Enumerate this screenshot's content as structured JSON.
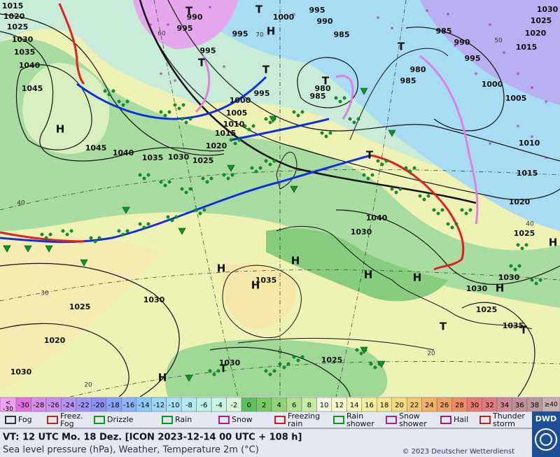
{
  "map": {
    "pressure_labels": [
      1015,
      1020,
      1025,
      1030,
      1035,
      1040,
      1045,
      1045,
      1040,
      1035,
      1030,
      1025,
      1020,
      1015,
      1010,
      1005,
      1000,
      995,
      995,
      995,
      995,
      990,
      1000,
      995,
      990,
      985,
      980,
      985,
      980,
      985,
      985,
      990,
      995,
      1000,
      1005,
      1010,
      1015,
      1015,
      1020,
      1025,
      1030,
      1020,
      1025,
      1030,
      1030,
      1025,
      1035,
      1030,
      1040,
      1035,
      1030,
      1025,
      1020,
      1030,
      1030,
      1025
    ],
    "highs": [
      "H",
      "H",
      "H",
      "H",
      "H",
      "H",
      "H",
      "H",
      "H",
      "H"
    ],
    "lows": [
      "T",
      "T",
      "T",
      "T",
      "T",
      "T",
      "T",
      "T",
      "T",
      "T"
    ],
    "graticule_labels": [
      60,
      70,
      50,
      40,
      40,
      30,
      20,
      20,
      0
    ]
  },
  "legend": {
    "temperature": {
      "below_label": [
        "<",
        "-30"
      ],
      "below_color": "#f0a0f0",
      "values": [
        -30,
        -28,
        -26,
        -24,
        -22,
        -20,
        -18,
        -16,
        -14,
        -12,
        -10,
        -8,
        -6,
        -4,
        -2,
        0,
        2,
        4,
        6,
        8,
        10,
        12,
        14,
        16,
        18,
        20,
        22,
        24,
        26,
        28,
        30,
        32,
        34,
        36,
        38
      ],
      "colors": [
        "#e070e0",
        "#d88ce4",
        "#c890ec",
        "#b494f0",
        "#a094f2",
        "#8c90f2",
        "#8ca4f6",
        "#8cb4f8",
        "#8cc8fa",
        "#9cd6fa",
        "#a8e2f6",
        "#b4ecf2",
        "#bcf2ea",
        "#c8f6e0",
        "#d6f8d6",
        "#5ec05a",
        "#78c864",
        "#94d478",
        "#b0e090",
        "#c8eca8",
        "#f4fae0",
        "#fafcd0",
        "#f8f8b8",
        "#f4f09c",
        "#f4e890",
        "#f4dc80",
        "#f0c870",
        "#f0b464",
        "#f0a060",
        "#f08c64",
        "#e87870",
        "#e07c80",
        "#d08890",
        "#c09098",
        "#b89898"
      ],
      "above_label": [
        "≥40"
      ],
      "above_color": "#c8b0b0"
    },
    "weather": [
      {
        "lines": [
          "Fog"
        ]
      },
      {
        "lines": [
          "Freez.",
          "Fog"
        ]
      },
      {
        "lines": [
          "Drizzle"
        ]
      },
      {
        "lines": [
          "Rain"
        ]
      },
      {
        "lines": [
          "Snow"
        ]
      },
      {
        "lines": [
          "Freezing",
          "rain"
        ]
      },
      {
        "lines": [
          "Rain",
          "shower"
        ]
      },
      {
        "lines": [
          "Snow",
          "shower"
        ]
      },
      {
        "lines": [
          "Hail"
        ]
      },
      {
        "lines": [
          "Thunder",
          "storm"
        ]
      }
    ]
  },
  "footer": {
    "valid_time": "VT: 12 UTC Mo.  18 Dez. [ICON 2023-12-14  00 UTC + 108 h]",
    "subtitle": "Sea level pressure (hPa), Weather, Temperature 2m (°C)",
    "copyright": "© 2023 Deutscher Wetterdienst",
    "logo": "DWD"
  }
}
